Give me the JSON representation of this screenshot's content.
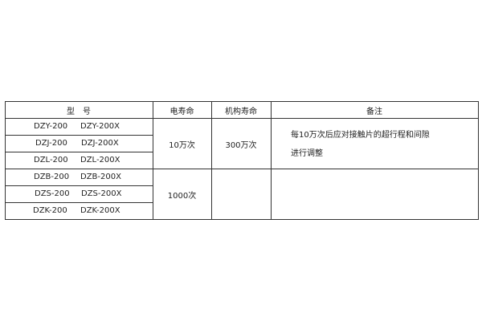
{
  "table": {
    "headers": [
      "型　号",
      "电寿命",
      "机构寿命",
      "备注"
    ],
    "rows": [
      {
        "model": "DZY-200",
        "model_x": "DZY-200X"
      },
      {
        "model": "DZJ-200",
        "model_x": "DZJ-200X"
      },
      {
        "model": "DZL-200",
        "model_x": "DZL-200X"
      },
      {
        "model": "DZB-200",
        "model_x": "DZB-200X"
      },
      {
        "model": "DZS-200",
        "model_x": "DZS-200X"
      },
      {
        "model": "DZK-200",
        "model_x": "DZK-200X"
      }
    ],
    "electric_life": [
      "10万次",
      "1000次"
    ],
    "mechanical_life": "300万次",
    "note_lines": [
      "每10万次后应对接触片的超行程和间隙",
      "进行调整"
    ]
  }
}
